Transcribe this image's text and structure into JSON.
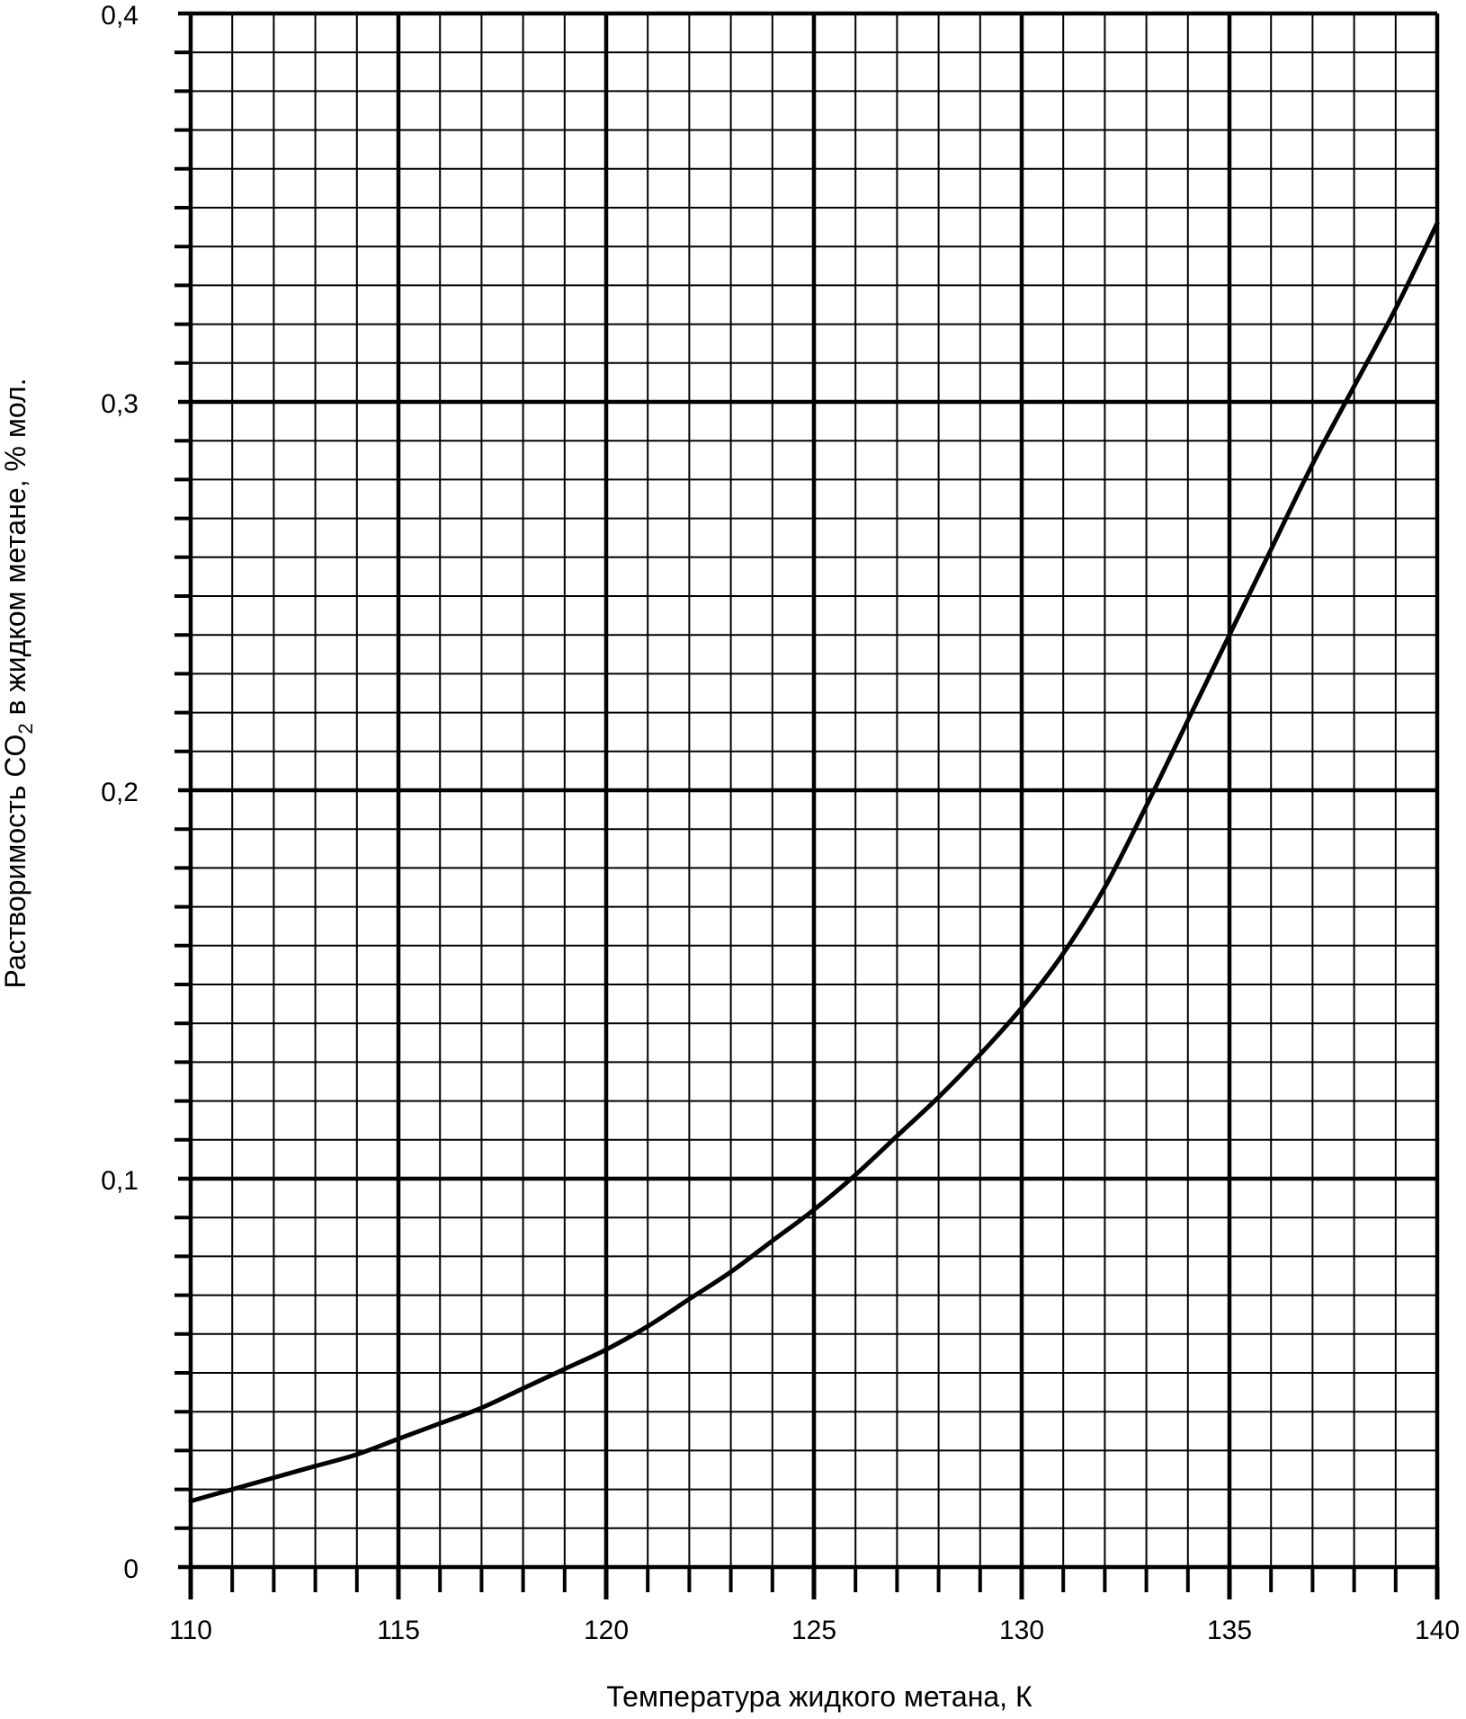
{
  "chart_data": {
    "type": "line",
    "title": "",
    "xlabel": "Температура жидкого метана, К",
    "ylabel_parts": [
      "Растворимость CO",
      "2",
      " в жидком метане, % мол."
    ],
    "xlim": [
      110,
      140
    ],
    "ylim": [
      0,
      0.4
    ],
    "x_ticks": [
      110,
      115,
      120,
      125,
      130,
      135,
      140
    ],
    "x_tick_labels": [
      "110",
      "115",
      "120",
      "125",
      "130",
      "135",
      "140"
    ],
    "y_ticks": [
      0,
      0.1,
      0.2,
      0.3,
      0.4
    ],
    "y_tick_labels": [
      "0",
      "0,1",
      "0,2",
      "0,3",
      "0,4"
    ],
    "x_minor_step": 1,
    "y_minor_step": 0.01,
    "grid": true,
    "series": [
      {
        "x": [
          110,
          111,
          112,
          113,
          114,
          115,
          116,
          117,
          118,
          119,
          120,
          121,
          122,
          123,
          124,
          125,
          126,
          127,
          128,
          129,
          130,
          131,
          132,
          133,
          134,
          135,
          136,
          137,
          138,
          139,
          140
        ],
        "values": [
          0.017,
          0.02,
          0.023,
          0.026,
          0.029,
          0.033,
          0.037,
          0.041,
          0.046,
          0.051,
          0.056,
          0.062,
          0.069,
          0.076,
          0.084,
          0.092,
          0.101,
          0.111,
          0.121,
          0.132,
          0.144,
          0.158,
          0.175,
          0.196,
          0.218,
          0.24,
          0.262,
          0.284,
          0.304,
          0.324,
          0.346
        ]
      }
    ]
  }
}
